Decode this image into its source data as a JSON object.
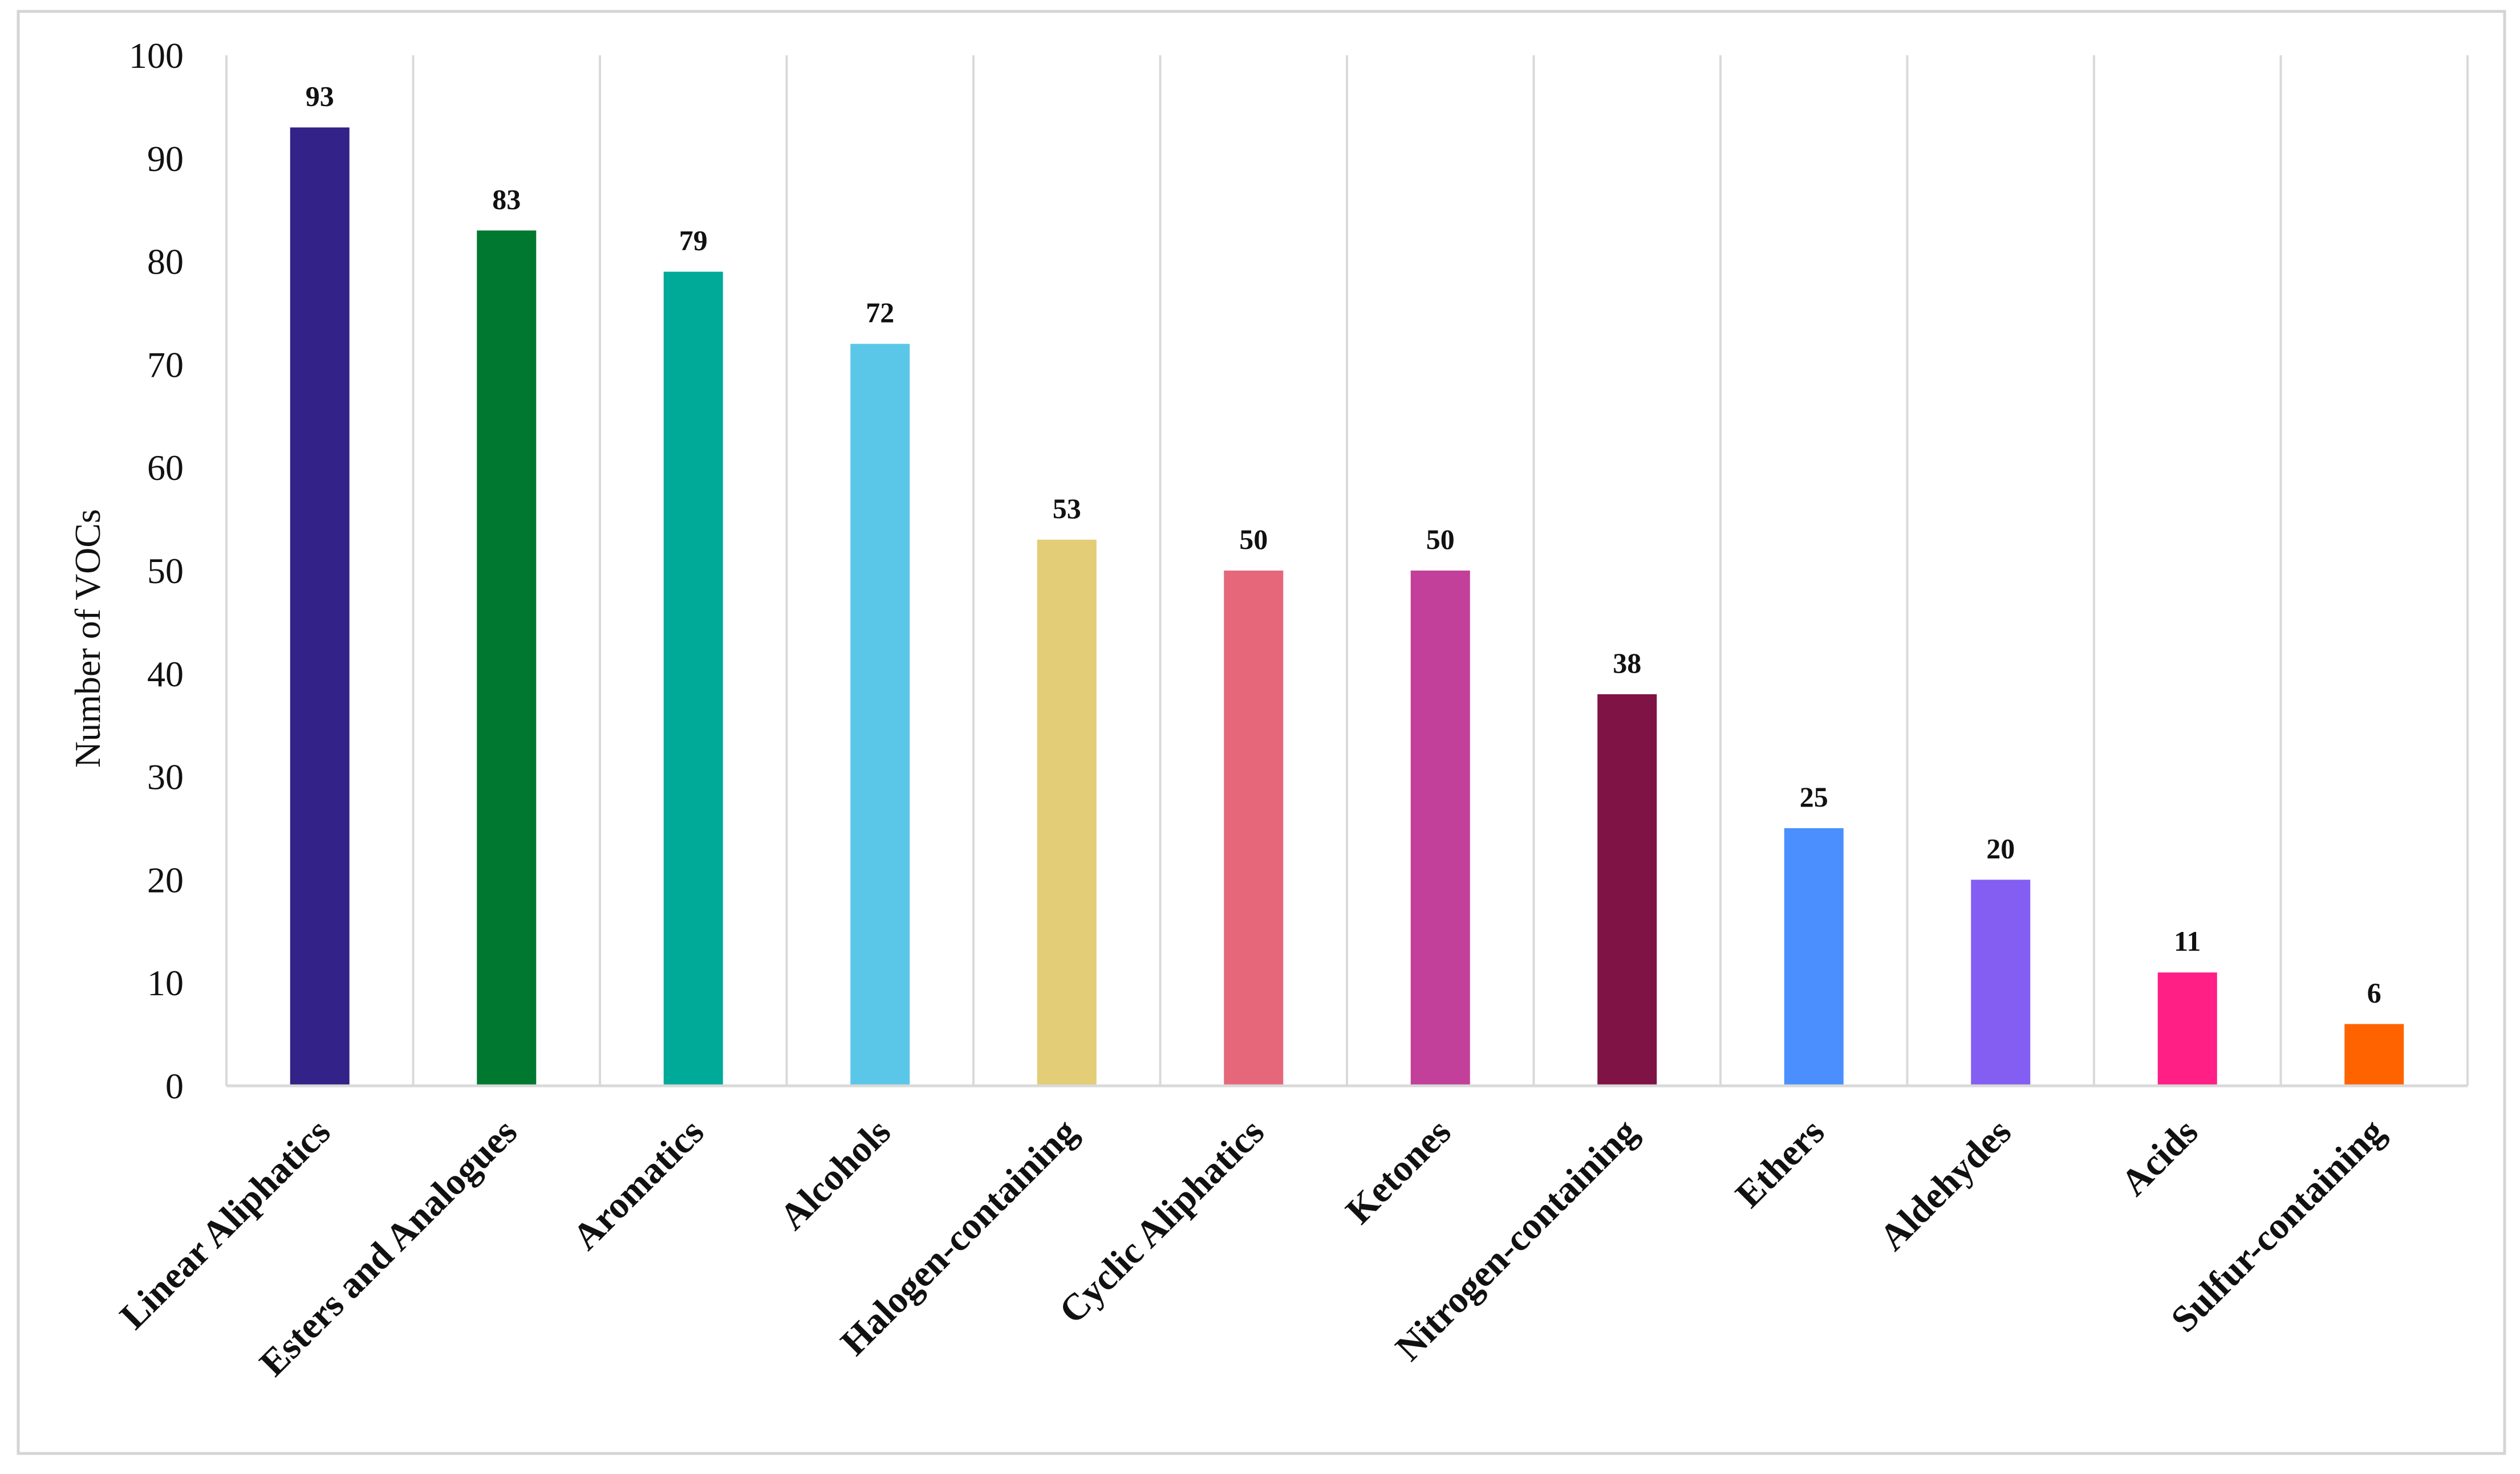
{
  "chart_data": {
    "type": "bar",
    "title": "",
    "xlabel": "",
    "ylabel": "Number of VOCs",
    "ylim": [
      0,
      100
    ],
    "yticks": [
      0,
      10,
      20,
      30,
      40,
      50,
      60,
      70,
      80,
      90,
      100
    ],
    "grid": "vertical",
    "legend": "none",
    "categories": [
      "Linear Aliphatics",
      "Esters and Analogues",
      "Aromatics",
      "Alcohols",
      "Halogen-containing",
      "Cyclic Aliphatics",
      "Ketones",
      "Nitrogen-containing",
      "Ethers",
      "Aldehydes",
      "Acids",
      "Sulfur-containing"
    ],
    "values": [
      93,
      83,
      79,
      72,
      53,
      50,
      50,
      38,
      25,
      20,
      11,
      6
    ],
    "colors": [
      "#332288",
      "#00782f",
      "#00aa98",
      "#5bc7e8",
      "#e3cd76",
      "#e6677a",
      "#c23f9a",
      "#7f1345",
      "#4a8ffd",
      "#845ef2",
      "#ff1f85",
      "#ff6300"
    ]
  }
}
